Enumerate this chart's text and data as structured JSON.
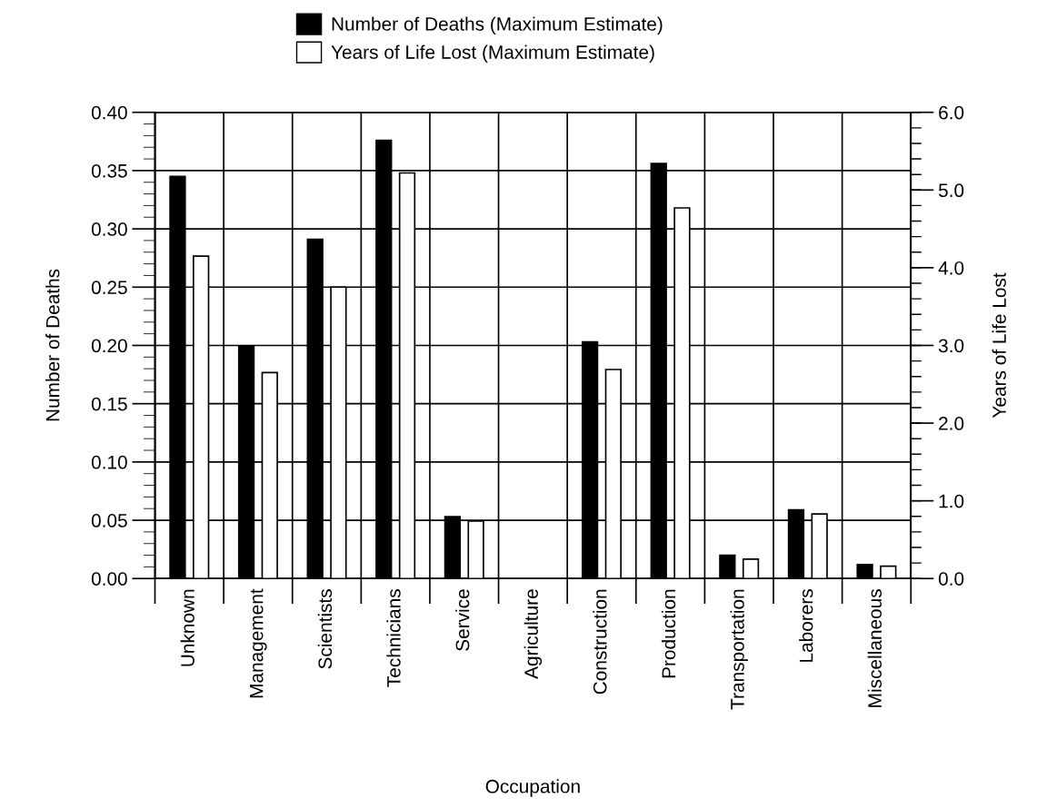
{
  "chart_data": {
    "type": "bar",
    "xlabel": "Occupation",
    "ylabel": "Number of Deaths",
    "y2label": "Years of Life Lost",
    "categories": [
      "Unknown",
      "Management",
      "Scientists",
      "Technicians",
      "Service",
      "Agriculture",
      "Construction",
      "Production",
      "Transportation",
      "Laborers",
      "Miscellaneous"
    ],
    "series": [
      {
        "name": "Number of Deaths (Maximum Estimate)",
        "color": "#000000",
        "values": [
          0.345,
          0.199,
          0.291,
          0.376,
          0.053,
          0,
          0.203,
          0.356,
          0.02,
          0.059,
          0.012
        ]
      },
      {
        "name": "Years of Life Lost (Maximum Estimate)",
        "color": "#ffffff",
        "axis": "y2",
        "values": [
          4.15,
          2.65,
          3.75,
          5.22,
          0.74,
          0,
          2.69,
          4.77,
          0.25,
          0.83,
          0.16
        ]
      }
    ],
    "ylim": [
      0,
      0.4
    ],
    "yticks": [
      {
        "value": 0,
        "label": "0.00"
      },
      {
        "value": 0.05,
        "label": "0.05"
      },
      {
        "value": 0.1,
        "label": "0.10"
      },
      {
        "value": 0.15,
        "label": "0.15"
      },
      {
        "value": 0.2,
        "label": "0.20"
      },
      {
        "value": 0.25,
        "label": "0.25"
      },
      {
        "value": 0.3,
        "label": "0.30"
      },
      {
        "value": 0.35,
        "label": "0.35"
      },
      {
        "value": 0.4,
        "label": "0.40"
      }
    ],
    "y2lim": [
      0,
      6
    ],
    "y2ticks": [
      {
        "value": 0,
        "label": "0.0"
      },
      {
        "value": 1,
        "label": "1.0"
      },
      {
        "value": 2,
        "label": "2.0"
      },
      {
        "value": 3,
        "label": "3.0"
      },
      {
        "value": 4,
        "label": "4.0"
      },
      {
        "value": 5,
        "label": "5.0"
      },
      {
        "value": 6,
        "label": "6.0"
      }
    ],
    "grid": true,
    "legend": "top"
  }
}
